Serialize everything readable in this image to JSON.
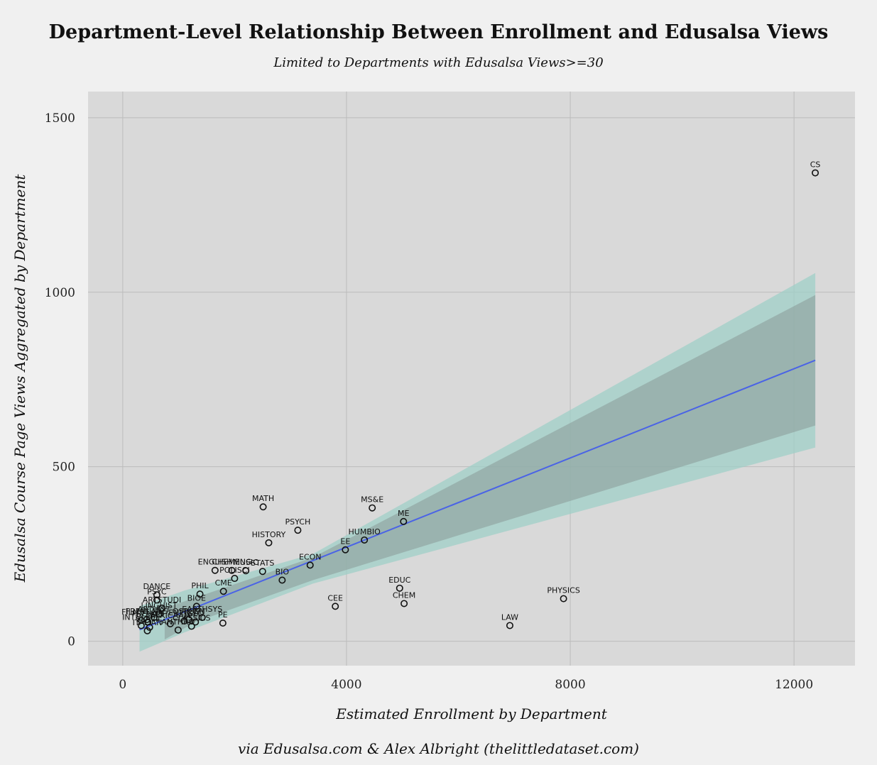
{
  "chart_data": {
    "type": "scatter",
    "title": "Department-Level Relationship Between Enrollment and Edusalsa Views",
    "subtitle": "Limited to Departments with Edusalsa Views>=30",
    "xlabel": "Estimated Enrollment by Department",
    "ylabel": "Edusalsa Course Page Views Aggregated by Department",
    "caption": "via Edusalsa.com & Alex Albright (thelittledataset.com)",
    "xlim": [
      -620,
      13090
    ],
    "ylim": [
      -70,
      1575
    ],
    "xticks": [
      0,
      4000,
      8000,
      12000
    ],
    "yticks": [
      0,
      500,
      1000,
      1500
    ],
    "grid": true,
    "colors": {
      "background": "#f0f0f0",
      "panel": "#d9d9d9",
      "grid": "#bcbcbc",
      "fit_line": "#4a63e6",
      "band_outer": "#9fcfc7",
      "band_inner": "#8c9f9b"
    },
    "fit": {
      "x": [
        300,
        12380
      ],
      "y": [
        33,
        805
      ]
    },
    "bands": {
      "outer": {
        "x": [
          300,
          1100,
          3400,
          12380
        ],
        "lower": [
          -30,
          25,
          165,
          555
        ],
        "upper": [
          100,
          145,
          250,
          1055
        ]
      },
      "inner": {
        "x": [
          750,
          1300,
          3400,
          12380
        ],
        "lower": [
          5,
          55,
          175,
          618
        ],
        "upper": [
          95,
          125,
          240,
          992
        ]
      }
    },
    "points": [
      {
        "label": "CS",
        "x": 12380,
        "y": 1342
      },
      {
        "label": "PHYSICS",
        "x": 7880,
        "y": 122
      },
      {
        "label": "LAW",
        "x": 6920,
        "y": 45
      },
      {
        "label": "ME",
        "x": 5020,
        "y": 343
      },
      {
        "label": "EDUC",
        "x": 4950,
        "y": 152
      },
      {
        "label": "CHEM",
        "x": 5030,
        "y": 108
      },
      {
        "label": "MS&E",
        "x": 4460,
        "y": 382
      },
      {
        "label": "HUMBIO",
        "x": 4320,
        "y": 290
      },
      {
        "label": "EE",
        "x": 3980,
        "y": 262
      },
      {
        "label": "CEE",
        "x": 3800,
        "y": 100
      },
      {
        "label": "ECON",
        "x": 3350,
        "y": 218
      },
      {
        "label": "PSYCH",
        "x": 3130,
        "y": 318
      },
      {
        "label": "BIO",
        "x": 2850,
        "y": 175
      },
      {
        "label": "HISTORY",
        "x": 2610,
        "y": 282
      },
      {
        "label": "MATH",
        "x": 2510,
        "y": 385
      },
      {
        "label": "STATS",
        "x": 2500,
        "y": 200
      },
      {
        "label": "MUSIC",
        "x": 2200,
        "y": 202
      },
      {
        "label": "POLISCI",
        "x": 2000,
        "y": 180
      },
      {
        "label": "CHEMENG",
        "x": 1950,
        "y": 203
      },
      {
        "label": "ENGLISH",
        "x": 1650,
        "y": 203
      },
      {
        "label": "CME",
        "x": 1800,
        "y": 143
      },
      {
        "label": "PE",
        "x": 1790,
        "y": 52
      },
      {
        "label": "PHIL",
        "x": 1380,
        "y": 135
      },
      {
        "label": "BIOE",
        "x": 1320,
        "y": 100
      },
      {
        "label": "EARTHSYS",
        "x": 1420,
        "y": 68
      },
      {
        "label": "GEO",
        "x": 1300,
        "y": 55
      },
      {
        "label": "OSPGEN",
        "x": 1180,
        "y": 62
      },
      {
        "label": "CLASSICS",
        "x": 1230,
        "y": 43
      },
      {
        "label": "ENERGY",
        "x": 1100,
        "y": 58
      },
      {
        "label": "ANTHRO",
        "x": 990,
        "y": 32
      },
      {
        "label": "AFRICAAM",
        "x": 850,
        "y": 50
      },
      {
        "label": "DANCE",
        "x": 610,
        "y": 133
      },
      {
        "label": "PSYC",
        "x": 610,
        "y": 118
      },
      {
        "label": "ARTSTUDI",
        "x": 700,
        "y": 95
      },
      {
        "label": "LINGUIST",
        "x": 650,
        "y": 78
      },
      {
        "label": "ARTHIST",
        "x": 560,
        "y": 68
      },
      {
        "label": "FRENLANG",
        "x": 430,
        "y": 62
      },
      {
        "label": "FRENCH",
        "x": 450,
        "y": 55
      },
      {
        "label": "FILMSTUD",
        "x": 330,
        "y": 60
      },
      {
        "label": "INTNLREL",
        "x": 330,
        "y": 45
      },
      {
        "label": "ITALIAN",
        "x": 440,
        "y": 30
      },
      {
        "label": "SLAVIC",
        "x": 480,
        "y": 40
      }
    ]
  }
}
